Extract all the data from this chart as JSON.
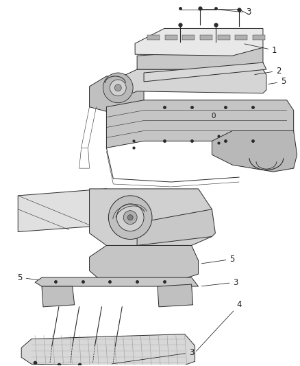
{
  "bg_color": "#ffffff",
  "line_color": "#2a2a2a",
  "gray_dark": "#888888",
  "gray_mid": "#aaaaaa",
  "gray_light": "#cccccc",
  "gray_fill": "#e0e0e0",
  "fig_width": 4.38,
  "fig_height": 5.33,
  "dpi": 100,
  "lw_main": 0.7,
  "lw_thin": 0.4,
  "lw_thick": 1.0
}
